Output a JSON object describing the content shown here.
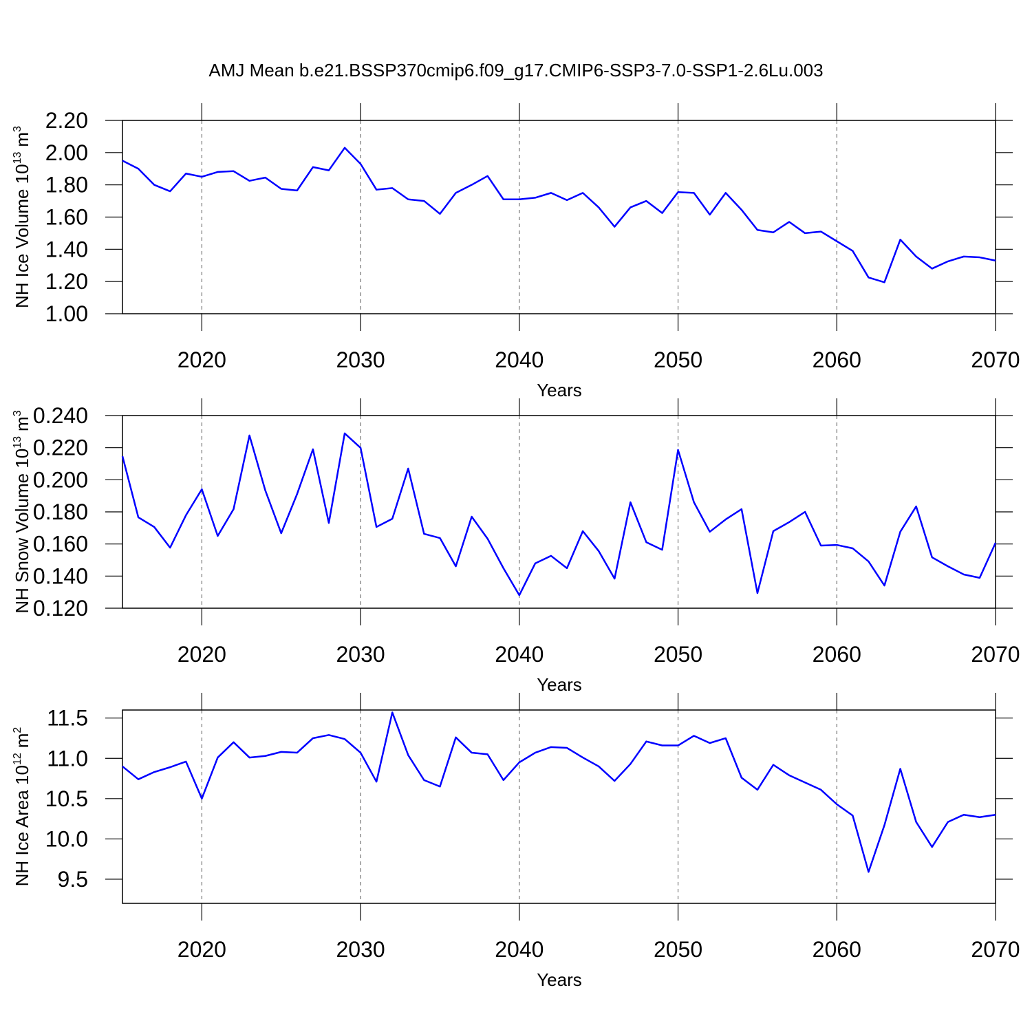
{
  "chart_data": [
    {
      "type": "line",
      "title": "AMJ Mean b.e21.BSSP370cmip6.f09_g17.CMIP6-SSP3-7.0-SSP1-2.6Lu.003",
      "ylabel": "NH Ice Volume 10",
      "ylabel_exponent": "13",
      "ylabel_unit": "m",
      "ylabel_unit_exponent": "3",
      "xlabel": "Years",
      "x": [
        2015,
        2016,
        2017,
        2018,
        2019,
        2020,
        2021,
        2022,
        2023,
        2024,
        2025,
        2026,
        2027,
        2028,
        2029,
        2030,
        2031,
        2032,
        2033,
        2034,
        2035,
        2036,
        2037,
        2038,
        2039,
        2040,
        2041,
        2042,
        2043,
        2044,
        2045,
        2046,
        2047,
        2048,
        2049,
        2050,
        2051,
        2052,
        2053,
        2054,
        2055,
        2056,
        2057,
        2058,
        2059,
        2060,
        2061,
        2062,
        2063,
        2064,
        2065,
        2066,
        2067,
        2068,
        2069,
        2070
      ],
      "values": [
        1.95,
        1.9,
        1.8,
        1.76,
        1.87,
        1.85,
        1.88,
        1.885,
        1.825,
        1.845,
        1.775,
        1.765,
        1.91,
        1.89,
        2.03,
        1.93,
        1.77,
        1.78,
        1.71,
        1.7,
        1.62,
        1.75,
        1.8,
        1.855,
        1.71,
        1.71,
        1.72,
        1.75,
        1.705,
        1.75,
        1.66,
        1.54,
        1.66,
        1.7,
        1.625,
        1.755,
        1.75,
        1.615,
        1.75,
        1.645,
        1.52,
        1.505,
        1.57,
        1.5,
        1.51,
        1.45,
        1.39,
        1.225,
        1.195,
        1.46,
        1.355,
        1.28,
        1.325,
        1.355,
        1.35,
        1.33
      ],
      "color": "#0000ff",
      "xlim": [
        2015,
        2070
      ],
      "xticks": [
        2020,
        2030,
        2040,
        2050,
        2060,
        2070
      ],
      "ylim": [
        1.0,
        2.2
      ],
      "yticks": [
        {
          "value": 1.0,
          "label": "1.00"
        },
        {
          "value": 1.2,
          "label": "1.20"
        },
        {
          "value": 1.4,
          "label": "1.40"
        },
        {
          "value": 1.6,
          "label": "1.60"
        },
        {
          "value": 1.8,
          "label": "1.80"
        },
        {
          "value": 2.0,
          "label": "2.00"
        },
        {
          "value": 2.2,
          "label": "2.20"
        }
      ],
      "grid": true
    },
    {
      "type": "line",
      "ylabel": "NH Snow Volume 10",
      "ylabel_exponent": "13",
      "ylabel_unit": "m",
      "ylabel_unit_exponent": "3",
      "xlabel": "Years",
      "x": [
        2015,
        2016,
        2017,
        2018,
        2019,
        2020,
        2021,
        2022,
        2023,
        2024,
        2025,
        2026,
        2027,
        2028,
        2029,
        2030,
        2031,
        2032,
        2033,
        2034,
        2035,
        2036,
        2037,
        2038,
        2039,
        2040,
        2041,
        2042,
        2043,
        2044,
        2045,
        2046,
        2047,
        2048,
        2049,
        2050,
        2051,
        2052,
        2053,
        2054,
        2055,
        2056,
        2057,
        2058,
        2059,
        2060,
        2061,
        2062,
        2063,
        2064,
        2065,
        2066,
        2067,
        2068,
        2069,
        2070
      ],
      "values": [
        0.2147,
        0.1766,
        0.1706,
        0.1577,
        0.1779,
        0.1941,
        0.165,
        0.1817,
        0.2276,
        0.1933,
        0.1667,
        0.1911,
        0.219,
        0.1731,
        0.2289,
        0.2199,
        0.1706,
        0.1757,
        0.207,
        0.1663,
        0.1637,
        0.1461,
        0.177,
        0.1633,
        0.1449,
        0.1281,
        0.1479,
        0.1526,
        0.1449,
        0.168,
        0.1556,
        0.1384,
        0.186,
        0.1611,
        0.1564,
        0.2186,
        0.186,
        0.1676,
        0.1753,
        0.1817,
        0.1294,
        0.168,
        0.1736,
        0.18,
        0.159,
        0.1594,
        0.1573,
        0.1491,
        0.1341,
        0.1676,
        0.1834,
        0.1517,
        0.1461,
        0.141,
        0.1389,
        0.1607
      ],
      "color": "#0000ff",
      "xlim": [
        2015,
        2070
      ],
      "xticks": [
        2020,
        2030,
        2040,
        2050,
        2060,
        2070
      ],
      "ylim": [
        0.12,
        0.24
      ],
      "yticks": [
        {
          "value": 0.12,
          "label": "0.120"
        },
        {
          "value": 0.14,
          "label": "0.140"
        },
        {
          "value": 0.16,
          "label": "0.160"
        },
        {
          "value": 0.18,
          "label": "0.180"
        },
        {
          "value": 0.2,
          "label": "0.200"
        },
        {
          "value": 0.22,
          "label": "0.220"
        },
        {
          "value": 0.24,
          "label": "0.240"
        }
      ],
      "grid": true
    },
    {
      "type": "line",
      "ylabel": "NH Ice Area 10",
      "ylabel_exponent": "12",
      "ylabel_unit": "m",
      "ylabel_unit_exponent": "2",
      "xlabel": "Years",
      "x": [
        2015,
        2016,
        2017,
        2018,
        2019,
        2020,
        2021,
        2022,
        2023,
        2024,
        2025,
        2026,
        2027,
        2028,
        2029,
        2030,
        2031,
        2032,
        2033,
        2034,
        2035,
        2036,
        2037,
        2038,
        2039,
        2040,
        2041,
        2042,
        2043,
        2044,
        2045,
        2046,
        2047,
        2048,
        2049,
        2050,
        2051,
        2052,
        2053,
        2054,
        2055,
        2056,
        2057,
        2058,
        2059,
        2060,
        2061,
        2062,
        2063,
        2064,
        2065,
        2066,
        2067,
        2068,
        2069,
        2070
      ],
      "values": [
        10.9,
        10.74,
        10.83,
        10.89,
        10.96,
        10.5,
        11.01,
        11.2,
        11.01,
        11.03,
        11.08,
        11.07,
        11.25,
        11.29,
        11.24,
        11.07,
        10.71,
        11.57,
        11.04,
        10.73,
        10.65,
        11.26,
        11.07,
        11.05,
        10.73,
        10.95,
        11.07,
        11.14,
        11.13,
        11.01,
        10.9,
        10.72,
        10.93,
        11.21,
        11.16,
        11.16,
        11.28,
        11.19,
        11.25,
        10.76,
        10.61,
        10.92,
        10.79,
        10.7,
        10.61,
        10.43,
        10.29,
        9.59,
        10.17,
        10.87,
        10.21,
        9.9,
        10.21,
        10.3,
        10.27,
        10.3
      ],
      "color": "#0000ff",
      "xlim": [
        2015,
        2070
      ],
      "xticks": [
        2020,
        2030,
        2040,
        2050,
        2060,
        2070
      ],
      "ylim": [
        9.2,
        11.6
      ],
      "yticks": [
        9.5,
        {
          "value": 10.0,
          "label": "10.0"
        },
        10.5,
        {
          "value": 11.0,
          "label": "11.0"
        },
        11.5
      ],
      "grid": true
    }
  ]
}
